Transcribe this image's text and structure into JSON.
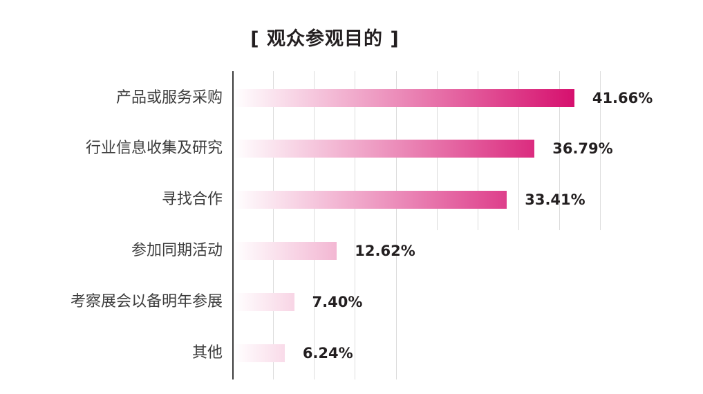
{
  "title": "[ 观众参观目的 ]",
  "chart_data": {
    "type": "bar",
    "orientation": "horizontal",
    "title": "[ 观众参观目的 ]",
    "xlabel": "",
    "ylabel": "",
    "categories": [
      "产品或服务采购",
      "行业信息收集及研究",
      "寻找合作",
      "参加同期活动",
      "考察展会以备明年参展",
      "其他"
    ],
    "values": [
      41.66,
      36.79,
      33.41,
      12.62,
      7.4,
      6.24
    ],
    "labels": [
      "41.66%",
      "36.79%",
      "33.41%",
      "12.62%",
      "7.40%",
      "6.24%"
    ],
    "xlim": [
      0,
      45
    ],
    "grid": true,
    "grid_step": 5,
    "legend": "none",
    "bar_gradient": {
      "start": "#ffffff",
      "end": "#d6106e"
    }
  },
  "colors": {
    "bar_end_max": "#d6106e",
    "text": "#231f20",
    "label": "#3c3c3c",
    "grid": "#dcdcdc"
  }
}
